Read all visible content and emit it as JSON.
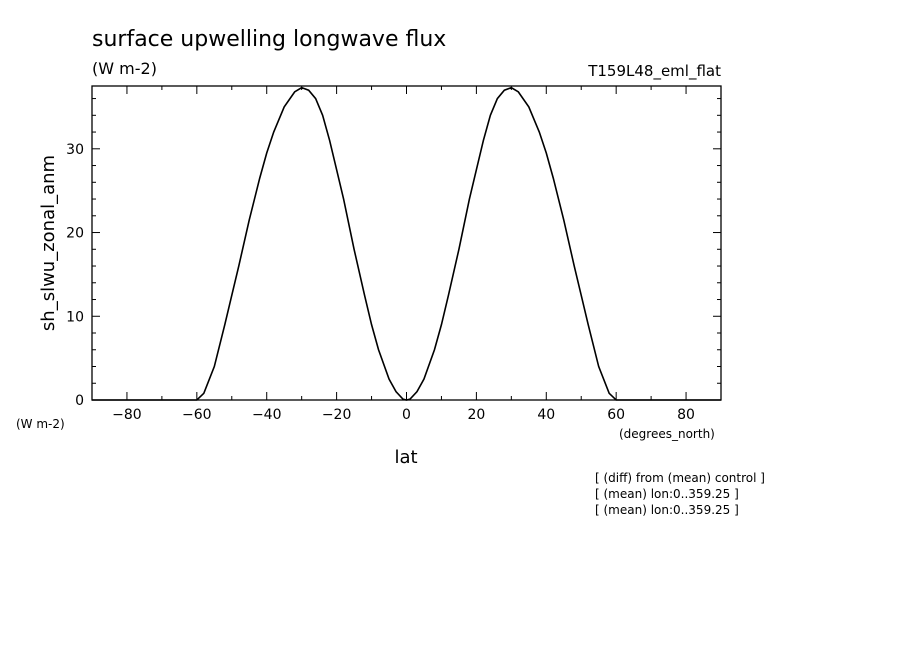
{
  "chart_data": {
    "type": "line",
    "title": "surface upwelling longwave flux",
    "subtitle": "(W m-2)",
    "run_label": "T159L48_eml_flat",
    "xlabel": "lat",
    "xunits": "(degrees_north)",
    "ylabel": "sh_slwu_zonal_anm",
    "yunits": "(W m-2)",
    "xlim": [
      -90,
      90
    ],
    "ylim": [
      0,
      37.5
    ],
    "xticks": [
      -80,
      -60,
      -40,
      -20,
      0,
      20,
      40,
      60,
      80
    ],
    "yticks": [
      0,
      10,
      20,
      30
    ],
    "grid": false,
    "line_color": "#000000",
    "series": [
      {
        "x": [
          -90,
          -80,
          -70,
          -62,
          -60,
          -58,
          -55,
          -52,
          -50,
          -48,
          -45,
          -42,
          -40,
          -38,
          -35,
          -32,
          -30,
          -28,
          -26,
          -24,
          -22,
          -20,
          -18,
          -15,
          -12,
          -10,
          -8,
          -5,
          -3,
          -1,
          0,
          1,
          3,
          5,
          8,
          10,
          12,
          15,
          18,
          20,
          22,
          24,
          26,
          28,
          30,
          32,
          35,
          38,
          40,
          42,
          45,
          48,
          50,
          52,
          55,
          58,
          60,
          62,
          70,
          80,
          90
        ],
        "y": [
          0,
          0,
          0,
          0,
          0,
          0.8,
          4,
          9,
          12.5,
          16,
          21.5,
          26.5,
          29.5,
          32,
          35,
          36.8,
          37.3,
          37,
          36,
          34,
          31,
          27.5,
          24,
          18,
          12.5,
          9,
          6,
          2.5,
          1,
          0.1,
          0,
          0.1,
          1,
          2.5,
          6,
          9,
          12.5,
          18,
          24,
          27.5,
          31,
          34,
          36,
          37,
          37.3,
          36.8,
          35,
          32,
          29.5,
          26.5,
          21.5,
          16,
          12.5,
          9,
          4,
          0.8,
          0,
          0,
          0,
          0,
          0
        ]
      }
    ]
  },
  "footnotes": [
    "[ (diff) from (mean) control ]",
    "[ (mean) lon:0..359.25 ]",
    "[ (mean) lon:0..359.25 ]"
  ]
}
